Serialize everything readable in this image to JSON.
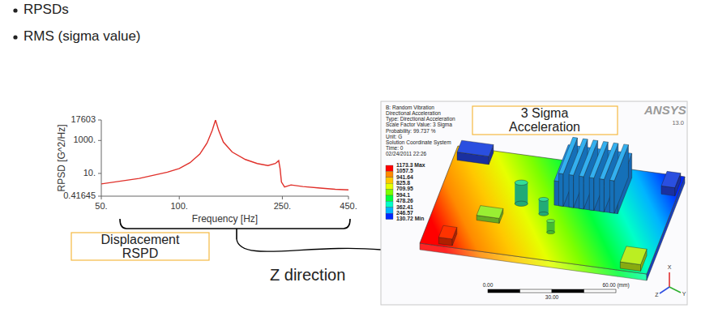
{
  "slide": {
    "bullets": [
      "RPSDs",
      "RMS (sigma value)"
    ],
    "displacement_box": [
      "Displacement",
      "RSPD"
    ],
    "direction_label": "Z direction"
  },
  "chart_data": {
    "type": "line",
    "ylabel": "RPSD [G^2/Hz]",
    "xlabel": "Frequency [Hz]",
    "x": [
      50,
      70,
      90,
      100,
      110,
      120,
      128,
      134,
      138,
      142,
      148,
      160,
      180,
      200,
      220,
      235,
      242,
      245,
      248,
      255,
      270,
      300,
      350,
      400,
      450
    ],
    "values": [
      2.3,
      5,
      12,
      20,
      45,
      150,
      700,
      4000,
      17603,
      4000,
      800,
      200,
      70,
      40,
      30,
      40,
      60,
      20,
      3,
      1.5,
      2,
      1.6,
      1.3,
      1.1,
      1.0
    ],
    "color": "#e0302a",
    "log": true,
    "grid": false,
    "xlim": [
      50,
      450
    ],
    "xticks": [
      {
        "value": 50,
        "label": "50."
      },
      {
        "value": 100,
        "label": "100."
      },
      {
        "value": 250,
        "label": "250."
      },
      {
        "value": 450,
        "label": "450."
      }
    ],
    "ylim": [
      0.41645,
      17603
    ],
    "yticks": [
      17603,
      {
        "value": 1000,
        "label": "1000."
      },
      {
        "value": 10,
        "label": "10."
      },
      0.41645
    ]
  },
  "result_plot": {
    "title_box": [
      "3 Sigma",
      "Acceleration"
    ],
    "header": [
      "B: Random Vibration",
      "Directional Acceleration",
      "Type: Directional Acceleration",
      "Scale Factor Value: 3 Sigma",
      "Probability: 99.737 %",
      "Unit: G",
      "Solution Coordinate System",
      "Time: 0",
      "02/24/2011 22:26"
    ],
    "legend": {
      "labels": [
        "1173.3 Max",
        "1057.5",
        "941.64",
        "825.8",
        "709.95",
        "594.1",
        "478.26",
        "362.41",
        "246.57",
        "130.72 Min"
      ],
      "colors": [
        "#ff0000",
        "#ff8a00",
        "#ffc800",
        "#e6ff00",
        "#7cff00",
        "#00ff3c",
        "#00ffc8",
        "#00b4ff",
        "#0028ff"
      ]
    },
    "logo": "ANSYS",
    "version": "13.0",
    "scale_bar": {
      "start": "0.00",
      "end": "60.00 (mm)",
      "middle": "30.00"
    },
    "triad": [
      "X",
      "Y",
      "Z"
    ]
  }
}
